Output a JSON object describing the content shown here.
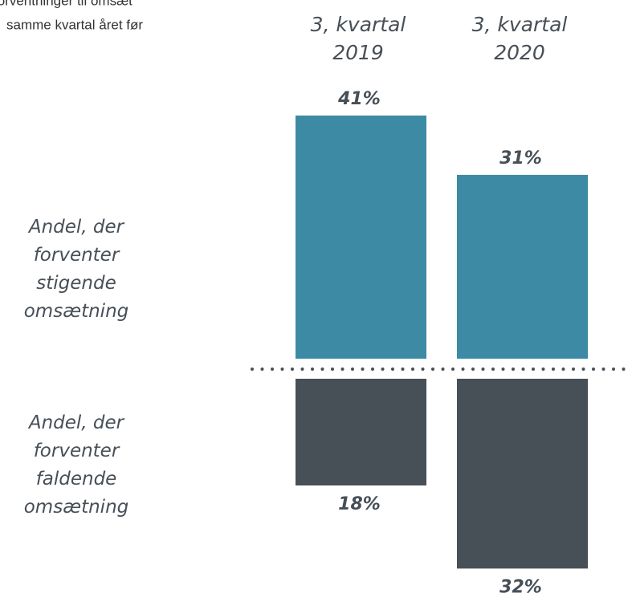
{
  "chart_data": {
    "type": "diverging-bar",
    "title": "forventninger til omsæt",
    "subtitle": "samme kvartal året før",
    "categories": [
      "3, kvartal 2019",
      "3, kvartal 2020"
    ],
    "series": [
      {
        "name": "Andel, der forventer stigende omsætning",
        "color": "#3d8aa5",
        "values": [
          41,
          31
        ],
        "value_labels": [
          "41%",
          "31%"
        ]
      },
      {
        "name": "Andel, der forventer faldende omsætning",
        "color": "#474f57",
        "values": [
          18,
          32
        ],
        "value_labels": [
          "18%",
          "32%"
        ]
      }
    ]
  }
}
